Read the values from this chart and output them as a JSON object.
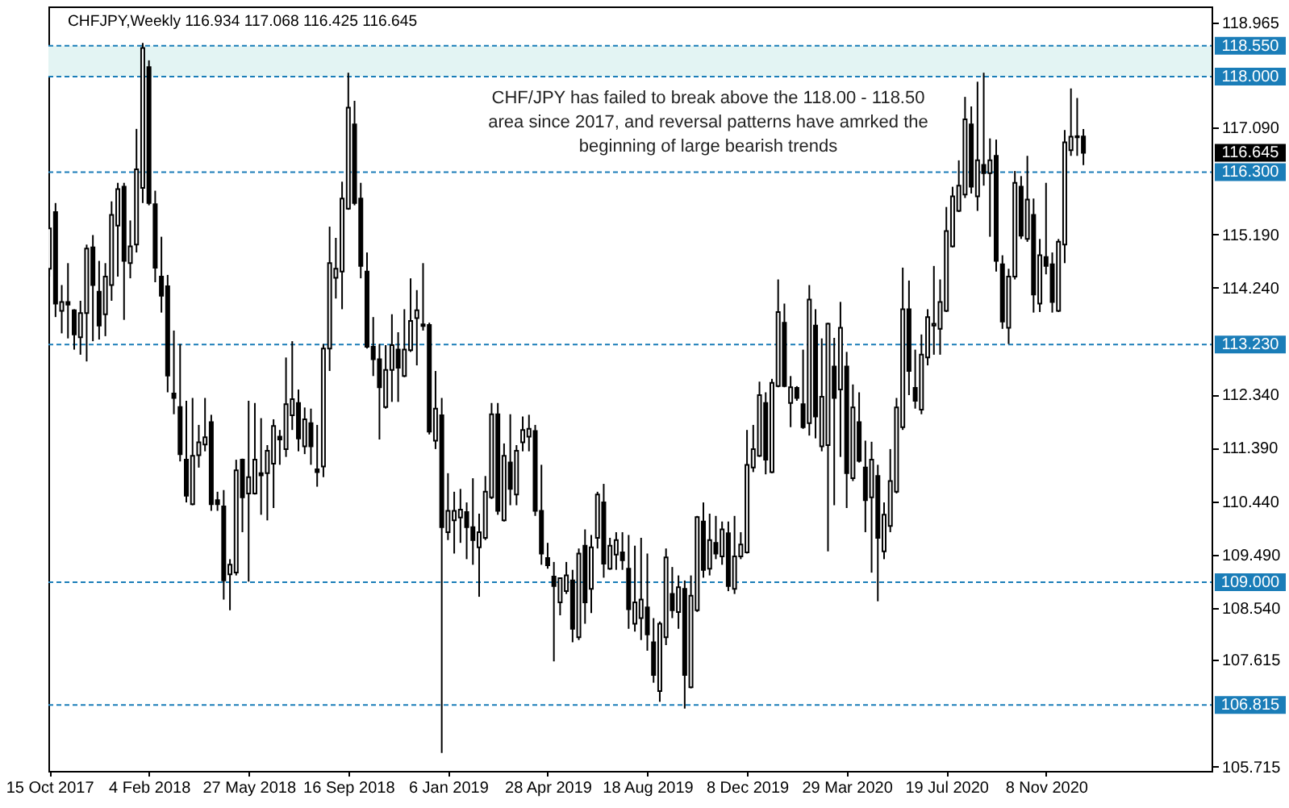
{
  "chart_data": {
    "type": "candlestick",
    "title": "CHFJPY,Weekly 116.934 117.068 116.425 116.645",
    "x": [
      "2017-10-15",
      "2017-10-22",
      "2017-10-29",
      "2017-11-05",
      "2017-11-12",
      "2017-11-19",
      "2017-11-26",
      "2017-12-03",
      "2017-12-10",
      "2017-12-17",
      "2017-12-24",
      "2017-12-31",
      "2018-01-07",
      "2018-01-14",
      "2018-01-21",
      "2018-01-28",
      "2018-02-04",
      "2018-02-11",
      "2018-02-18",
      "2018-02-25",
      "2018-03-04",
      "2018-03-11",
      "2018-03-18",
      "2018-03-25",
      "2018-04-01",
      "2018-04-08",
      "2018-04-15",
      "2018-04-22",
      "2018-04-29",
      "2018-05-06",
      "2018-05-13",
      "2018-05-20",
      "2018-05-27",
      "2018-06-03",
      "2018-06-10",
      "2018-06-17",
      "2018-06-24",
      "2018-07-01",
      "2018-07-08",
      "2018-07-15",
      "2018-07-22",
      "2018-07-29",
      "2018-08-05",
      "2018-08-12",
      "2018-08-19",
      "2018-08-26",
      "2018-09-02",
      "2018-09-09",
      "2018-09-16",
      "2018-09-23",
      "2018-09-30",
      "2018-10-07",
      "2018-10-14",
      "2018-10-21",
      "2018-10-28",
      "2018-11-04",
      "2018-11-11",
      "2018-11-18",
      "2018-11-25",
      "2018-12-02",
      "2018-12-09",
      "2018-12-16",
      "2018-12-23",
      "2018-12-30",
      "2019-01-06",
      "2019-01-13",
      "2019-01-20",
      "2019-01-27",
      "2019-02-03",
      "2019-02-10",
      "2019-02-17",
      "2019-02-24",
      "2019-03-03",
      "2019-03-10",
      "2019-03-17",
      "2019-03-24",
      "2019-03-31",
      "2019-04-07",
      "2019-04-14",
      "2019-04-21",
      "2019-04-28",
      "2019-05-05",
      "2019-05-12",
      "2019-05-19",
      "2019-05-26",
      "2019-06-02",
      "2019-06-09",
      "2019-06-16",
      "2019-06-23",
      "2019-06-30",
      "2019-07-07",
      "2019-07-14",
      "2019-07-21",
      "2019-07-28",
      "2019-08-04",
      "2019-08-11",
      "2019-08-18",
      "2019-08-25",
      "2019-09-01",
      "2019-09-08",
      "2019-09-15",
      "2019-09-22",
      "2019-09-29",
      "2019-10-06",
      "2019-10-13",
      "2019-10-20",
      "2019-10-27",
      "2019-11-03",
      "2019-11-10",
      "2019-11-17",
      "2019-11-24",
      "2019-12-01",
      "2019-12-08",
      "2019-12-15",
      "2019-12-22",
      "2019-12-29",
      "2020-01-05",
      "2020-01-12",
      "2020-01-19",
      "2020-01-26",
      "2020-02-02",
      "2020-02-09",
      "2020-02-16",
      "2020-02-23",
      "2020-03-01",
      "2020-03-08",
      "2020-03-15",
      "2020-03-22",
      "2020-03-29",
      "2020-04-05",
      "2020-04-12",
      "2020-04-19",
      "2020-04-26",
      "2020-05-03",
      "2020-05-10",
      "2020-05-17",
      "2020-05-24",
      "2020-05-31",
      "2020-06-07",
      "2020-06-14",
      "2020-06-21",
      "2020-06-28",
      "2020-07-05",
      "2020-07-12",
      "2020-07-19",
      "2020-07-26",
      "2020-08-02",
      "2020-08-09",
      "2020-08-16",
      "2020-08-23",
      "2020-08-30",
      "2020-09-06",
      "2020-09-13",
      "2020-09-20",
      "2020-09-27",
      "2020-10-04",
      "2020-10-11",
      "2020-10-18",
      "2020-10-25",
      "2020-11-01",
      "2020-11-08",
      "2020-11-15",
      "2020-11-22",
      "2020-11-29",
      "2020-12-06",
      "2020-12-13",
      "2020-12-20"
    ],
    "ohlc": [
      [
        114.58,
        115.63,
        114.44,
        115.3
      ],
      [
        115.59,
        115.75,
        113.72,
        113.96
      ],
      [
        113.83,
        114.29,
        113.43,
        113.99
      ],
      [
        113.99,
        114.68,
        113.34,
        113.94
      ],
      [
        113.84,
        113.86,
        113.14,
        113.41
      ],
      [
        113.36,
        114.01,
        113.05,
        113.79
      ],
      [
        113.79,
        115.01,
        112.93,
        114.94
      ],
      [
        114.96,
        115.18,
        113.29,
        114.29
      ],
      [
        114.17,
        114.72,
        113.32,
        113.57
      ],
      [
        113.77,
        114.68,
        113.38,
        114.44
      ],
      [
        114.29,
        115.78,
        114.01,
        115.54
      ],
      [
        115.35,
        116.11,
        114.44,
        116.0
      ],
      [
        116.04,
        116.11,
        113.67,
        114.72
      ],
      [
        114.68,
        115.44,
        114.41,
        114.98
      ],
      [
        115.01,
        117.07,
        114.87,
        116.35
      ],
      [
        116.02,
        118.6,
        115.75,
        118.51
      ],
      [
        118.17,
        118.29,
        115.71,
        115.75
      ],
      [
        115.73,
        115.97,
        114.34,
        114.6
      ],
      [
        114.44,
        115.15,
        113.8,
        114.1
      ],
      [
        114.27,
        114.47,
        112.38,
        112.68
      ],
      [
        112.36,
        113.48,
        111.99,
        112.28
      ],
      [
        112.12,
        113.24,
        111.15,
        111.28
      ],
      [
        111.18,
        112.23,
        110.42,
        110.54
      ],
      [
        110.39,
        112.28,
        110.37,
        111.25
      ],
      [
        111.26,
        111.8,
        111.04,
        111.49
      ],
      [
        111.45,
        112.28,
        111.33,
        111.58
      ],
      [
        111.85,
        111.98,
        110.27,
        110.39
      ],
      [
        110.46,
        110.61,
        110.27,
        110.39
      ],
      [
        110.35,
        110.64,
        108.69,
        109.03
      ],
      [
        109.14,
        109.41,
        108.5,
        109.31
      ],
      [
        109.17,
        111.18,
        109.12,
        110.99
      ],
      [
        111.18,
        111.2,
        109.89,
        110.51
      ],
      [
        110.58,
        112.23,
        109.01,
        110.87
      ],
      [
        110.58,
        112.19,
        110.56,
        111.18
      ],
      [
        110.94,
        111.92,
        110.2,
        110.9
      ],
      [
        110.94,
        111.44,
        110.1,
        111.34
      ],
      [
        111.11,
        111.9,
        110.32,
        111.78
      ],
      [
        111.59,
        111.71,
        111.09,
        111.54
      ],
      [
        111.37,
        113.0,
        111.23,
        112.17
      ],
      [
        111.97,
        113.29,
        111.71,
        112.26
      ],
      [
        112.19,
        112.43,
        111.33,
        111.56
      ],
      [
        111.42,
        112.11,
        111.28,
        111.9
      ],
      [
        111.83,
        112.09,
        111.09,
        111.42
      ],
      [
        111.01,
        111.8,
        110.7,
        110.96
      ],
      [
        111.06,
        113.24,
        110.87,
        113.16
      ],
      [
        113.16,
        115.33,
        112.76,
        114.68
      ],
      [
        114.42,
        115.13,
        114.05,
        114.58
      ],
      [
        114.53,
        116.13,
        113.86,
        115.83
      ],
      [
        115.65,
        118.07,
        115.63,
        117.45
      ],
      [
        117.15,
        117.57,
        115.71,
        115.75
      ],
      [
        115.83,
        116.11,
        114.41,
        114.63
      ],
      [
        114.53,
        114.87,
        113.16,
        113.19
      ],
      [
        113.19,
        113.72,
        112.67,
        112.97
      ],
      [
        112.97,
        113.24,
        111.54,
        112.47
      ],
      [
        112.12,
        113.22,
        112.09,
        112.78
      ],
      [
        112.78,
        113.77,
        112.21,
        113.22
      ],
      [
        113.14,
        113.45,
        112.21,
        112.82
      ],
      [
        112.67,
        113.86,
        112.65,
        113.14
      ],
      [
        113.13,
        114.41,
        113.1,
        113.65
      ],
      [
        113.7,
        114.2,
        112.86,
        113.84
      ],
      [
        113.59,
        114.68,
        113.48,
        113.56
      ],
      [
        113.58,
        113.62,
        111.63,
        111.68
      ],
      [
        111.52,
        112.76,
        111.37,
        112.09
      ],
      [
        111.97,
        112.28,
        105.96,
        109.98
      ],
      [
        109.89,
        110.94,
        109.75,
        110.27
      ],
      [
        110.1,
        110.61,
        109.51,
        110.27
      ],
      [
        110.15,
        110.66,
        109.7,
        110.29
      ],
      [
        110.25,
        110.42,
        109.41,
        109.98
      ],
      [
        109.98,
        110.85,
        109.31,
        109.75
      ],
      [
        109.62,
        110.22,
        108.74,
        109.89
      ],
      [
        109.79,
        110.89,
        109.75,
        110.61
      ],
      [
        110.51,
        112.19,
        110.48,
        111.99
      ],
      [
        111.99,
        112.19,
        110.2,
        110.27
      ],
      [
        110.1,
        111.47,
        110.08,
        111.25
      ],
      [
        111.13,
        111.99,
        110.37,
        110.66
      ],
      [
        110.56,
        111.44,
        110.37,
        111.34
      ],
      [
        111.49,
        111.95,
        111.33,
        111.71
      ],
      [
        111.59,
        111.98,
        111.33,
        111.73
      ],
      [
        111.69,
        111.8,
        110.18,
        110.27
      ],
      [
        110.27,
        111.09,
        109.31,
        109.51
      ],
      [
        109.43,
        109.7,
        109.24,
        109.3
      ],
      [
        109.1,
        109.36,
        107.59,
        108.93
      ],
      [
        108.64,
        109.08,
        108.41,
        109.07
      ],
      [
        108.84,
        109.36,
        108.79,
        109.12
      ],
      [
        109.03,
        109.22,
        107.93,
        108.17
      ],
      [
        108.02,
        109.6,
        107.97,
        109.51
      ],
      [
        109.65,
        109.94,
        108.26,
        108.64
      ],
      [
        108.88,
        109.84,
        108.45,
        109.62
      ],
      [
        109.79,
        110.61,
        109.6,
        110.56
      ],
      [
        110.42,
        110.75,
        109.08,
        109.33
      ],
      [
        109.24,
        109.79,
        109.22,
        109.65
      ],
      [
        109.49,
        109.89,
        109.22,
        109.75
      ],
      [
        109.53,
        109.89,
        109.22,
        109.39
      ],
      [
        109.24,
        109.84,
        108.17,
        108.52
      ],
      [
        108.26,
        109.65,
        108.12,
        108.64
      ],
      [
        108.36,
        109.79,
        107.97,
        108.69
      ],
      [
        108.55,
        109.51,
        107.78,
        108.07
      ],
      [
        107.93,
        108.36,
        107.21,
        107.35
      ],
      [
        107.06,
        108.3,
        106.87,
        108.26
      ],
      [
        108.02,
        109.6,
        107.88,
        109.44
      ],
      [
        108.79,
        109.27,
        108.36,
        108.5
      ],
      [
        108.47,
        109.12,
        108.17,
        108.91
      ],
      [
        108.88,
        109.03,
        106.75,
        107.35
      ],
      [
        107.13,
        109.12,
        107.11,
        108.76
      ],
      [
        108.5,
        110.18,
        108.47,
        110.16
      ],
      [
        110.08,
        110.42,
        109.08,
        109.22
      ],
      [
        109.24,
        110.22,
        109.12,
        109.75
      ],
      [
        109.7,
        110.18,
        109.41,
        109.51
      ],
      [
        109.46,
        110.08,
        109.31,
        109.94
      ],
      [
        109.87,
        110.08,
        108.84,
        108.93
      ],
      [
        108.88,
        110.18,
        108.79,
        109.46
      ],
      [
        109.46,
        109.89,
        109.41,
        109.67
      ],
      [
        109.53,
        111.71,
        109.51,
        111.09
      ],
      [
        111.04,
        111.8,
        110.96,
        111.37
      ],
      [
        111.25,
        112.57,
        111.23,
        112.33
      ],
      [
        112.19,
        112.38,
        110.92,
        111.18
      ],
      [
        110.96,
        112.62,
        110.94,
        112.55
      ],
      [
        112.49,
        114.39,
        112.47,
        113.81
      ],
      [
        113.62,
        113.96,
        112.47,
        112.49
      ],
      [
        112.19,
        112.67,
        111.76,
        112.47
      ],
      [
        112.46,
        112.49,
        112.23,
        112.28
      ],
      [
        112.17,
        113.14,
        111.73,
        111.76
      ],
      [
        111.83,
        114.29,
        111.61,
        114.03
      ],
      [
        113.57,
        113.86,
        111.56,
        111.95
      ],
      [
        111.42,
        113.34,
        111.33,
        112.3
      ],
      [
        111.44,
        113.62,
        109.55,
        113.6
      ],
      [
        112.84,
        113.35,
        110.37,
        112.28
      ],
      [
        112.43,
        113.99,
        111.23,
        113.53
      ],
      [
        112.84,
        113.1,
        110.32,
        110.94
      ],
      [
        110.85,
        112.52,
        110.8,
        112.11
      ],
      [
        111.85,
        112.38,
        111.13,
        111.16
      ],
      [
        111.04,
        111.52,
        109.89,
        110.46
      ],
      [
        110.51,
        111.5,
        109.17,
        111.18
      ],
      [
        110.89,
        111.09,
        108.66,
        109.79
      ],
      [
        109.55,
        110.42,
        109.41,
        110.2
      ],
      [
        110.0,
        111.37,
        109.89,
        110.8
      ],
      [
        110.61,
        112.28,
        110.58,
        112.11
      ],
      [
        111.76,
        114.6,
        111.71,
        113.86
      ],
      [
        113.86,
        114.37,
        112.33,
        112.76
      ],
      [
        112.46,
        113.14,
        112.09,
        112.23
      ],
      [
        112.07,
        113.41,
        111.99,
        113.05
      ],
      [
        113.0,
        113.86,
        112.86,
        113.72
      ],
      [
        113.57,
        114.63,
        113.05,
        113.6
      ],
      [
        113.51,
        114.39,
        113.05,
        113.99
      ],
      [
        113.83,
        115.68,
        113.81,
        115.25
      ],
      [
        114.98,
        116.04,
        114.96,
        115.87
      ],
      [
        115.61,
        116.51,
        115.59,
        116.06
      ],
      [
        115.9,
        117.64,
        115.84,
        117.24
      ],
      [
        117.15,
        117.47,
        115.92,
        116.04
      ],
      [
        115.87,
        117.91,
        115.61,
        116.51
      ],
      [
        116.43,
        118.07,
        116.06,
        116.28
      ],
      [
        116.28,
        116.9,
        115.15,
        116.51
      ],
      [
        116.59,
        116.88,
        114.53,
        114.72
      ],
      [
        114.66,
        114.82,
        113.51,
        113.64
      ],
      [
        113.53,
        114.58,
        113.24,
        114.44
      ],
      [
        114.44,
        116.32,
        114.39,
        116.11
      ],
      [
        116.04,
        116.23,
        115.11,
        115.17
      ],
      [
        115.11,
        116.59,
        115.06,
        115.81
      ],
      [
        115.54,
        115.83,
        113.8,
        114.12
      ],
      [
        113.96,
        115.11,
        113.81,
        114.82
      ],
      [
        114.79,
        116.11,
        114.48,
        114.63
      ],
      [
        114.66,
        114.87,
        113.8,
        113.99
      ],
      [
        113.83,
        115.11,
        113.81,
        115.06
      ],
      [
        115.01,
        117.05,
        114.68,
        116.83
      ],
      [
        116.69,
        117.79,
        116.59,
        116.93
      ],
      [
        116.94,
        117.62,
        116.59,
        116.92
      ],
      [
        116.934,
        117.068,
        116.425,
        116.645
      ]
    ],
    "colors": [
      "#ffffff",
      "#000000",
      "#ffffff",
      "#000000",
      "#000000",
      "#ffffff",
      "#ffffff",
      "#000000",
      "#000000",
      "#ffffff",
      "#ffffff",
      "#ffffff",
      "#000000",
      "#ffffff",
      "#ffffff",
      "#ffffff",
      "#000000",
      "#000000",
      "#000000",
      "#000000",
      "#000000",
      "#000000",
      "#000000",
      "#ffffff",
      "#ffffff",
      "#ffffff",
      "#000000",
      "#000000",
      "#000000",
      "#ffffff",
      "#ffffff",
      "#000000",
      "#ffffff",
      "#ffffff",
      "#000000",
      "#ffffff",
      "#ffffff",
      "#000000",
      "#ffffff",
      "#ffffff",
      "#000000",
      "#ffffff",
      "#000000",
      "#000000",
      "#ffffff",
      "#ffffff",
      "#ffffff",
      "#ffffff",
      "#ffffff",
      "#000000",
      "#000000",
      "#000000",
      "#000000",
      "#000000",
      "#ffffff",
      "#ffffff",
      "#000000",
      "#ffffff",
      "#ffffff",
      "#ffffff",
      "#000000",
      "#000000",
      "#ffffff",
      "#000000",
      "#ffffff",
      "#ffffff",
      "#ffffff",
      "#000000",
      "#000000",
      "#ffffff",
      "#ffffff",
      "#ffffff",
      "#000000",
      "#ffffff",
      "#000000",
      "#ffffff",
      "#ffffff",
      "#ffffff",
      "#000000",
      "#000000",
      "#000000",
      "#000000",
      "#ffffff",
      "#ffffff",
      "#000000",
      "#ffffff",
      "#000000",
      "#ffffff",
      "#ffffff",
      "#000000",
      "#ffffff",
      "#ffffff",
      "#000000",
      "#000000",
      "#ffffff",
      "#ffffff",
      "#000000",
      "#000000",
      "#ffffff",
      "#ffffff",
      "#000000",
      "#ffffff",
      "#000000",
      "#ffffff",
      "#ffffff",
      "#000000",
      "#ffffff",
      "#000000",
      "#ffffff",
      "#000000",
      "#ffffff",
      "#ffffff",
      "#ffffff",
      "#ffffff",
      "#ffffff",
      "#000000",
      "#ffffff",
      "#ffffff",
      "#000000",
      "#ffffff",
      "#000000",
      "#000000",
      "#ffffff",
      "#000000",
      "#ffffff",
      "#ffffff",
      "#000000",
      "#ffffff",
      "#000000",
      "#ffffff",
      "#000000",
      "#000000",
      "#ffffff",
      "#000000",
      "#ffffff",
      "#ffffff",
      "#ffffff",
      "#ffffff",
      "#000000",
      "#000000",
      "#ffffff",
      "#ffffff",
      "#ffffff",
      "#ffffff",
      "#ffffff",
      "#ffffff",
      "#ffffff",
      "#ffffff",
      "#000000",
      "#ffffff",
      "#000000",
      "#ffffff",
      "#000000",
      "#000000",
      "#ffffff",
      "#ffffff",
      "#000000",
      "#ffffff",
      "#000000",
      "#ffffff",
      "#000000",
      "#000000",
      "#ffffff",
      "#ffffff",
      "#ffffff",
      "#000000",
      "#000000"
    ],
    "color": "#000000",
    "xlim": [
      "2017-10-14",
      "2021-05-13"
    ],
    "xticks": [
      {
        "value": "2017-10-15",
        "label": "15 Oct 2017"
      },
      {
        "value": "2018-02-04",
        "label": "4 Feb 2018"
      },
      {
        "value": "2018-05-27",
        "label": "27 May 2018"
      },
      {
        "value": "2018-09-16",
        "label": "16 Sep 2018"
      },
      {
        "value": "2019-01-06",
        "label": "6 Jan 2019"
      },
      {
        "value": "2019-04-28",
        "label": "28 Apr 2019"
      },
      {
        "value": "2019-08-18",
        "label": "18 Aug 2019"
      },
      {
        "value": "2019-12-08",
        "label": "8 Dec 2019"
      },
      {
        "value": "2020-03-29",
        "label": "29 Mar 2020"
      },
      {
        "value": "2020-07-19",
        "label": "19 Jul 2020"
      },
      {
        "value": "2020-11-08",
        "label": "8 Nov 2020"
      }
    ],
    "ylim": [
      105.64,
      119.25
    ],
    "yticks": [
      118.965,
      {
        "value": 117.09,
        "label": "117.090"
      },
      {
        "value": 115.19,
        "label": "115.190"
      },
      {
        "value": 114.24,
        "label": "114.240"
      },
      {
        "value": 112.34,
        "label": "112.340"
      },
      {
        "value": 111.39,
        "label": "111.390"
      },
      {
        "value": 110.44,
        "label": "110.440"
      },
      {
        "value": 109.49,
        "label": "109.490"
      },
      {
        "value": 108.54,
        "label": "108.540"
      },
      107.615,
      105.715
    ],
    "bands": [
      {
        "axis": "y",
        "from": 118.0,
        "to": 118.55,
        "color": "#e3f4f3"
      }
    ],
    "ref_lines": [
      {
        "axis": "y",
        "value": 118.55,
        "label": "118.550",
        "color": "#1a7db8",
        "line_style": "dashed"
      },
      {
        "axis": "y",
        "value": 118.0,
        "label": "118.000",
        "color": "#1a7db8",
        "line_style": "dashed"
      },
      {
        "axis": "y",
        "value": 116.3,
        "label": "116.300",
        "color": "#1a7db8",
        "line_style": "dashed"
      },
      {
        "axis": "y",
        "value": 113.23,
        "label": "113.230",
        "color": "#1a7db8",
        "line_style": "dashed"
      },
      {
        "axis": "y",
        "value": 109.0,
        "label": "109.000",
        "color": "#1a7db8",
        "line_style": "dashed"
      },
      {
        "axis": "y",
        "value": 106.815,
        "label": "106.815",
        "color": "#1a7db8",
        "line_style": "dashed"
      }
    ],
    "annotations": [
      "CHF/JPY has failed to break above the 118.00 - 118.50\narea since 2017, and reversal patterns have amrked the\nbeginning of large bearish trends",
      "116.645"
    ]
  }
}
